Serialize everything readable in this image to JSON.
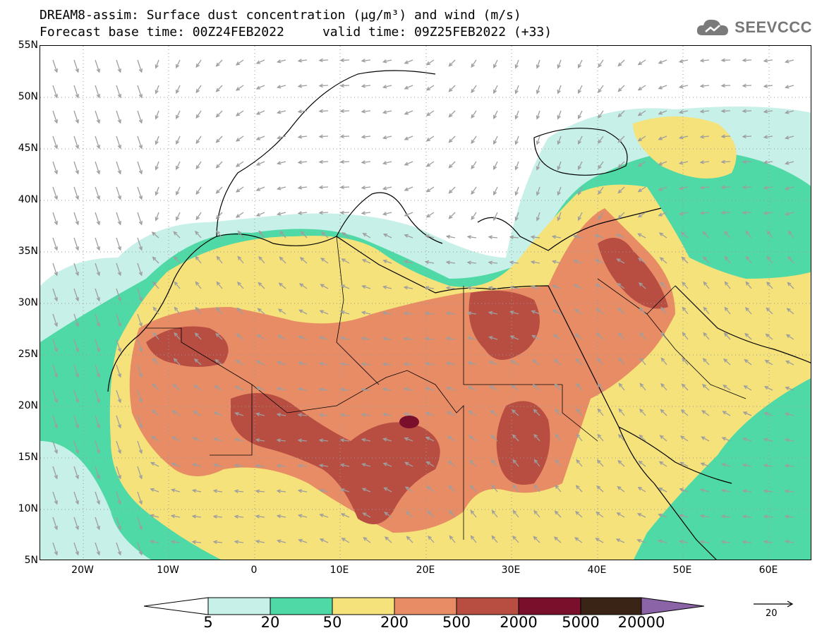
{
  "title": {
    "line1": "DREAM8-assim: Surface dust concentration (μg/m³) and wind (m/s)",
    "line2": "Forecast base time: 00Z24FEB2022     valid time: 09Z25FEB2022 (+33)"
  },
  "logo": {
    "text": "SEEVCCC",
    "icon": "cloud-icon"
  },
  "map": {
    "lon_range": [
      -25,
      65
    ],
    "lat_range": [
      5,
      55
    ],
    "gridlines": "dotted",
    "lat_labels": [
      "55N",
      "50N",
      "45N",
      "40N",
      "35N",
      "30N",
      "25N",
      "20N",
      "15N",
      "10N",
      "5N"
    ],
    "lon_labels": [
      "20W",
      "10W",
      "0",
      "10E",
      "20E",
      "30E",
      "40E",
      "50E",
      "60E"
    ]
  },
  "colorbar": {
    "labels": [
      "5",
      "20",
      "50",
      "200",
      "500",
      "2000",
      "5000",
      "20000"
    ],
    "colors": [
      "#c7f0e8",
      "#4fd9a6",
      "#f5e27a",
      "#e88c66",
      "#b84d42",
      "#7a0f2c",
      "#3a2416",
      "#8a64a6"
    ],
    "units": "μg/m³"
  },
  "reference_vector": {
    "label": "20",
    "units": "m/s"
  }
}
